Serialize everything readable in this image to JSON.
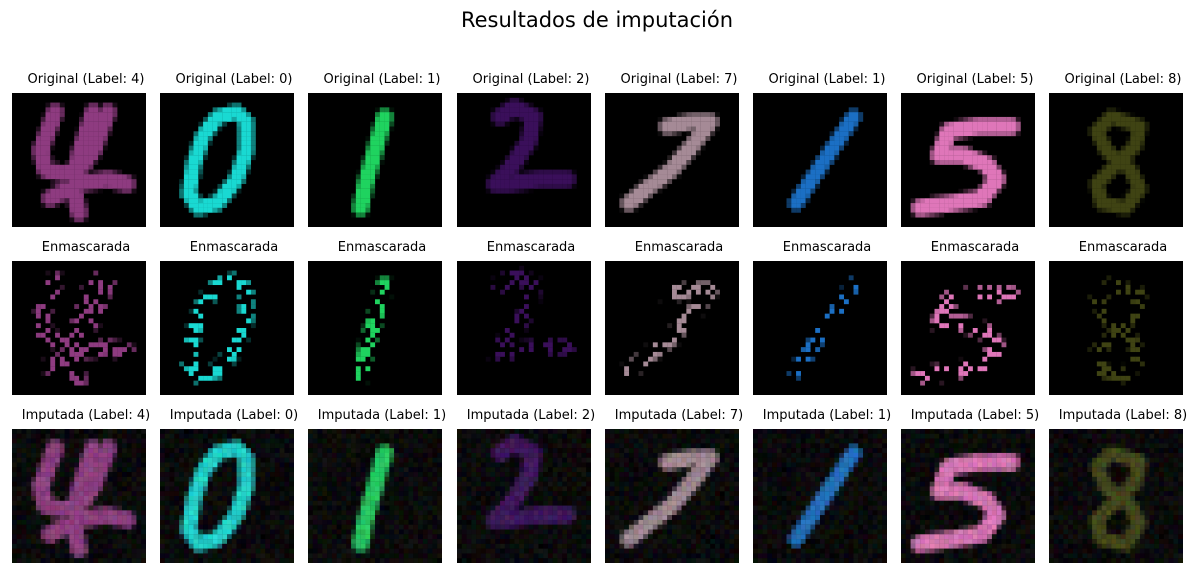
{
  "figure": {
    "title": "Resultados de imputación"
  },
  "rows": [
    {
      "kind": "original",
      "captions": [
        "Original (Label: 4)",
        "Original (Label: 0)",
        "Original (Label: 1)",
        "Original (Label: 2)",
        "Original (Label: 7)",
        "Original (Label: 1)",
        "Original (Label: 5)",
        "Original (Label: 8)"
      ]
    },
    {
      "kind": "masked",
      "captions": [
        "Enmascarada",
        "Enmascarada",
        "Enmascarada",
        "Enmascarada",
        "Enmascarada",
        "Enmascarada",
        "Enmascarada",
        "Enmascarada"
      ]
    },
    {
      "kind": "imputed",
      "captions": [
        "Imputada (Label: 4)",
        "Imputada (Label: 0)",
        "Imputada (Label: 1)",
        "Imputada (Label: 2)",
        "Imputada (Label: 7)",
        "Imputada (Label: 1)",
        "Imputada (Label: 5)",
        "Imputada (Label: 8)"
      ]
    }
  ],
  "digits": [
    {
      "label": 4,
      "color": "#8e3b80"
    },
    {
      "label": 0,
      "color": "#19d9d2"
    },
    {
      "label": 1,
      "color": "#1fd35f"
    },
    {
      "label": 2,
      "color": "#3a0f5a"
    },
    {
      "label": 7,
      "color": "#a58a96"
    },
    {
      "label": 1,
      "color": "#1b6fc4"
    },
    {
      "label": 5,
      "color": "#df76b9"
    },
    {
      "label": 8,
      "color": "#3f4313"
    }
  ]
}
